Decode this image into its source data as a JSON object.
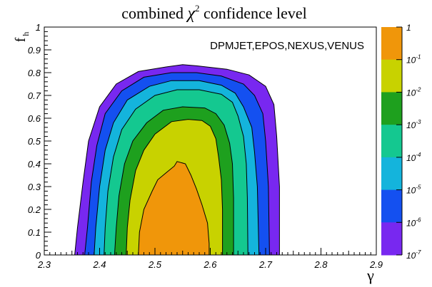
{
  "chart_data": {
    "type": "contour",
    "title_main": "combined ",
    "title_symbol": "χ",
    "title_sup": "2",
    "title_rest": " confidence level",
    "xlabel": "γ",
    "ylabel_main": "f",
    "ylabel_sub": "h",
    "annotation": "DPMJET,EPOS,NEXUS,VENUS",
    "xlim": [
      2.3,
      2.9
    ],
    "ylim": [
      0,
      1
    ],
    "x_ticks": [
      "2.3",
      "2.4",
      "2.5",
      "2.6",
      "2.7",
      "2.8",
      "2.9"
    ],
    "y_ticks": [
      "0",
      "0.1",
      "0.2",
      "0.3",
      "0.4",
      "0.5",
      "0.6",
      "0.7",
      "0.8",
      "0.9",
      "1"
    ],
    "colorbar": {
      "scale": "log",
      "range": [
        1e-07,
        1
      ],
      "labels": [
        {
          "base": "1",
          "exp": ""
        },
        {
          "base": "10",
          "exp": "-1"
        },
        {
          "base": "10",
          "exp": "-2"
        },
        {
          "base": "10",
          "exp": "-3"
        },
        {
          "base": "10",
          "exp": "-4"
        },
        {
          "base": "10",
          "exp": "-5"
        },
        {
          "base": "10",
          "exp": "-6"
        },
        {
          "base": "10",
          "exp": "-7"
        }
      ],
      "colors_top_to_bottom": [
        "#f0960a",
        "#c8d200",
        "#1ea01e",
        "#14c890",
        "#14b4dc",
        "#1450f0",
        "#7828f0"
      ]
    },
    "contour_colors_outer_to_inner": [
      "#7828f0",
      "#1450f0",
      "#14b4dc",
      "#14c890",
      "#1ea01e",
      "#c8d200",
      "#f0960a"
    ],
    "contours": [
      {
        "level": "1e-7",
        "points": [
          [
            2.355,
            0
          ],
          [
            2.36,
            0.12
          ],
          [
            2.37,
            0.32
          ],
          [
            2.38,
            0.5
          ],
          [
            2.4,
            0.65
          ],
          [
            2.43,
            0.75
          ],
          [
            2.47,
            0.805
          ],
          [
            2.52,
            0.825
          ],
          [
            2.55,
            0.835
          ],
          [
            2.575,
            0.83
          ],
          [
            2.63,
            0.815
          ],
          [
            2.67,
            0.79
          ],
          [
            2.7,
            0.74
          ],
          [
            2.715,
            0.66
          ],
          [
            2.72,
            0.52
          ],
          [
            2.725,
            0.3
          ],
          [
            2.725,
            0
          ]
        ]
      },
      {
        "level": "1e-6",
        "points": [
          [
            2.373,
            0
          ],
          [
            2.378,
            0.12
          ],
          [
            2.385,
            0.32
          ],
          [
            2.395,
            0.48
          ],
          [
            2.41,
            0.62
          ],
          [
            2.44,
            0.72
          ],
          [
            2.48,
            0.78
          ],
          [
            2.53,
            0.8
          ],
          [
            2.575,
            0.8
          ],
          [
            2.62,
            0.785
          ],
          [
            2.66,
            0.75
          ],
          [
            2.68,
            0.7
          ],
          [
            2.695,
            0.62
          ],
          [
            2.7,
            0.5
          ],
          [
            2.705,
            0.3
          ],
          [
            2.707,
            0
          ]
        ]
      },
      {
        "level": "1e-5",
        "points": [
          [
            2.39,
            0
          ],
          [
            2.393,
            0.12
          ],
          [
            2.4,
            0.3
          ],
          [
            2.41,
            0.46
          ],
          [
            2.425,
            0.58
          ],
          [
            2.45,
            0.68
          ],
          [
            2.49,
            0.74
          ],
          [
            2.53,
            0.765
          ],
          [
            2.58,
            0.765
          ],
          [
            2.62,
            0.745
          ],
          [
            2.645,
            0.71
          ],
          [
            2.66,
            0.65
          ],
          [
            2.675,
            0.56
          ],
          [
            2.68,
            0.45
          ],
          [
            2.685,
            0.3
          ],
          [
            2.688,
            0
          ]
        ]
      },
      {
        "level": "1e-4",
        "points": [
          [
            2.408,
            0
          ],
          [
            2.41,
            0.12
          ],
          [
            2.415,
            0.28
          ],
          [
            2.425,
            0.43
          ],
          [
            2.44,
            0.55
          ],
          [
            2.465,
            0.64
          ],
          [
            2.5,
            0.7
          ],
          [
            2.54,
            0.725
          ],
          [
            2.58,
            0.725
          ],
          [
            2.62,
            0.705
          ],
          [
            2.64,
            0.67
          ],
          [
            2.65,
            0.61
          ],
          [
            2.66,
            0.52
          ],
          [
            2.665,
            0.4
          ],
          [
            2.667,
            0.25
          ],
          [
            2.668,
            0
          ]
        ]
      },
      {
        "level": "1e-3",
        "points": [
          [
            2.427,
            0
          ],
          [
            2.43,
            0.12
          ],
          [
            2.435,
            0.26
          ],
          [
            2.445,
            0.4
          ],
          [
            2.46,
            0.5
          ],
          [
            2.485,
            0.58
          ],
          [
            2.515,
            0.635
          ],
          [
            2.55,
            0.65
          ],
          [
            2.59,
            0.645
          ],
          [
            2.61,
            0.62
          ],
          [
            2.625,
            0.57
          ],
          [
            2.635,
            0.49
          ],
          [
            2.64,
            0.4
          ],
          [
            2.642,
            0.25
          ],
          [
            2.642,
            0
          ]
        ]
      },
      {
        "level": "1e-2",
        "points": [
          [
            2.448,
            0
          ],
          [
            2.45,
            0.12
          ],
          [
            2.455,
            0.24
          ],
          [
            2.465,
            0.37
          ],
          [
            2.48,
            0.46
          ],
          [
            2.5,
            0.53
          ],
          [
            2.53,
            0.585
          ],
          [
            2.56,
            0.595
          ],
          [
            2.585,
            0.59
          ],
          [
            2.6,
            0.565
          ],
          [
            2.61,
            0.51
          ],
          [
            2.615,
            0.43
          ],
          [
            2.62,
            0.33
          ],
          [
            2.622,
            0.2
          ],
          [
            2.622,
            0
          ]
        ]
      },
      {
        "level": "1e-1",
        "points": [
          [
            2.47,
            0
          ],
          [
            2.472,
            0.1
          ],
          [
            2.48,
            0.2
          ],
          [
            2.495,
            0.28
          ],
          [
            2.505,
            0.33
          ],
          [
            2.52,
            0.36
          ],
          [
            2.535,
            0.39
          ],
          [
            2.54,
            0.41
          ],
          [
            2.555,
            0.4
          ],
          [
            2.565,
            0.35
          ],
          [
            2.575,
            0.29
          ],
          [
            2.585,
            0.22
          ],
          [
            2.595,
            0.14
          ],
          [
            2.598,
            0.05
          ],
          [
            2.598,
            0
          ]
        ]
      }
    ]
  }
}
